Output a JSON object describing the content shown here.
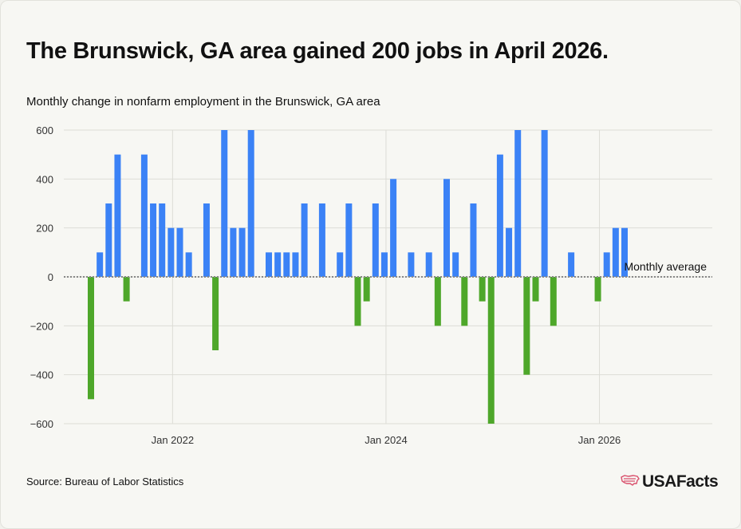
{
  "title": "The Brunswick, GA area gained 200 jobs in April 2026.",
  "subtitle": "Monthly change in nonfarm employment in the Brunswick, GA area",
  "source": "Source: Bureau of Labor Statistics",
  "brand": {
    "name": "USAFacts",
    "icon": "us-flag-map-icon"
  },
  "colors": {
    "positive": "#3b82f6",
    "negative": "#4ea72a",
    "grid": "#dcdcd6",
    "avg_line": "#888888"
  },
  "chart_data": {
    "type": "bar",
    "title": "Monthly change in nonfarm employment in the Brunswick, GA area",
    "xlabel": "",
    "ylabel": "",
    "ylim": [
      -600,
      600
    ],
    "y_ticks": [
      "600",
      "400",
      "200",
      "0",
      "-200",
      "-400",
      "-600"
    ],
    "x_ticks": [
      "Jan 2022",
      "Jan 2024",
      "Jan 2026"
    ],
    "grid": true,
    "x": [
      "2021-04",
      "2021-05",
      "2021-06",
      "2021-07",
      "2021-08",
      "2021-09",
      "2021-10",
      "2021-11",
      "2021-12",
      "2022-01",
      "2022-02",
      "2022-03",
      "2022-04",
      "2022-05",
      "2022-06",
      "2022-07",
      "2022-08",
      "2022-09",
      "2022-10",
      "2022-11",
      "2022-12",
      "2023-01",
      "2023-02",
      "2023-03",
      "2023-04",
      "2023-05",
      "2023-06",
      "2023-07",
      "2023-08",
      "2023-09",
      "2023-10",
      "2023-11",
      "2023-12",
      "2024-01",
      "2024-02",
      "2024-03",
      "2024-04",
      "2024-05",
      "2024-06",
      "2024-07",
      "2024-08",
      "2024-09",
      "2024-10",
      "2024-11",
      "2024-12",
      "2025-01",
      "2025-02",
      "2025-03",
      "2025-04",
      "2025-05",
      "2025-06",
      "2025-07",
      "2025-08",
      "2025-09",
      "2025-10",
      "2025-11",
      "2025-12",
      "2026-01",
      "2026-02",
      "2026-03",
      "2026-04"
    ],
    "values": [
      -500,
      100,
      300,
      500,
      -100,
      0,
      500,
      300,
      300,
      200,
      200,
      100,
      0,
      300,
      -300,
      600,
      200,
      200,
      600,
      0,
      100,
      100,
      100,
      100,
      300,
      0,
      300,
      0,
      100,
      300,
      -200,
      -100,
      300,
      100,
      400,
      0,
      100,
      0,
      100,
      -200,
      400,
      100,
      -200,
      300,
      -100,
      -600,
      500,
      200,
      600,
      -400,
      -100,
      600,
      -200,
      0,
      100,
      0,
      0,
      -100,
      100,
      200,
      200
    ],
    "annotations": [
      {
        "text": "Monthly average",
        "y": 0
      }
    ]
  }
}
